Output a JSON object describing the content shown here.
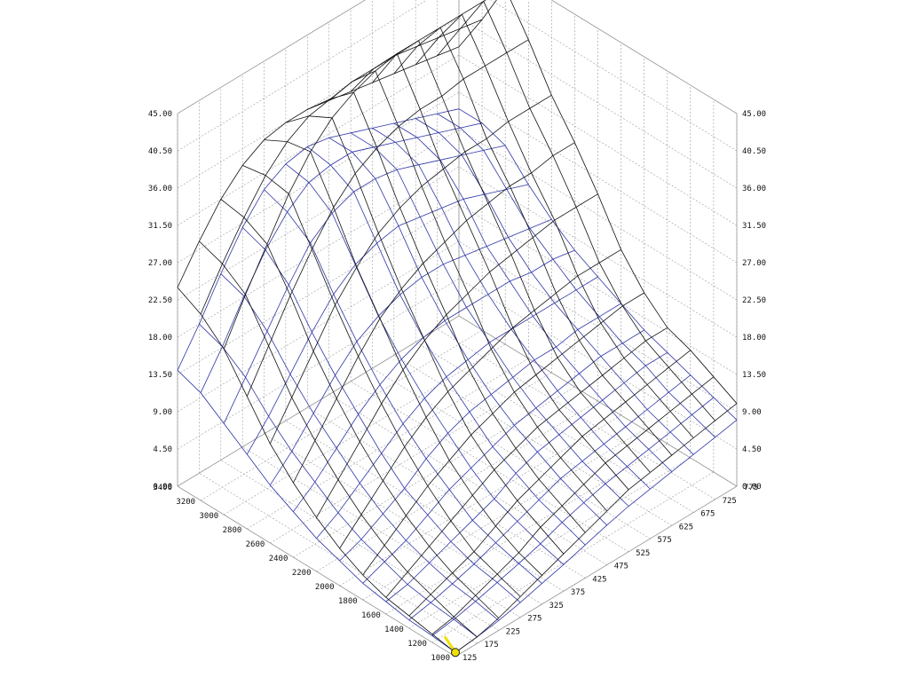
{
  "chart_data": {
    "type": "surface3d",
    "title": "",
    "xlabel": "",
    "ylabel": "",
    "zlabel": "",
    "rpm_ticks": [
      "1000",
      "1200",
      "1400",
      "1600",
      "1800",
      "2000",
      "2200",
      "2400",
      "2600",
      "2800",
      "3000",
      "3200",
      "3400"
    ],
    "load_ticks": [
      "125",
      "175",
      "225",
      "275",
      "325",
      "375",
      "425",
      "475",
      "525",
      "575",
      "625",
      "675",
      "725",
      "775"
    ],
    "z_ticks": [
      "0.00",
      "4.50",
      "9.00",
      "13.50",
      "18.00",
      "22.50",
      "27.00",
      "31.50",
      "36.00",
      "40.50",
      "45.00"
    ],
    "xlim": [
      1000,
      3400
    ],
    "ylim": [
      125,
      775
    ],
    "zlim": [
      0,
      45
    ],
    "grid": true,
    "series": [
      {
        "rows_axis": "rpm",
        "cols_axis": "load",
        "rpm": [
          1000,
          1200,
          1400,
          1600,
          1800,
          2000,
          2200,
          2400,
          2600,
          2800,
          3000,
          3200,
          3400
        ],
        "load": [
          125,
          175,
          225,
          275,
          325,
          375,
          425,
          475,
          525,
          575,
          625,
          675,
          725,
          775
        ],
        "values": [
          [
            0.5,
            0.8,
            1.5,
            2.5,
            3.5,
            4.5,
            5.5,
            6.5,
            7.5,
            8.0,
            8.5,
            9.0,
            9.5,
            10.0
          ],
          [
            1.0,
            1.5,
            2.5,
            3.5,
            4.5,
            6.0,
            7.0,
            8.0,
            9.0,
            9.5,
            10.0,
            10.5,
            11.0,
            11.5
          ],
          [
            1.5,
            2.5,
            3.5,
            4.5,
            6.0,
            7.5,
            8.5,
            9.5,
            10.5,
            11.0,
            11.5,
            12.0,
            12.5,
            13.0
          ],
          [
            2.0,
            3.5,
            5.0,
            6.5,
            8.0,
            9.5,
            10.5,
            11.5,
            12.0,
            12.5,
            13.0,
            13.5,
            14.0,
            14.0
          ],
          [
            3.0,
            5.0,
            7.0,
            9.0,
            10.5,
            12.0,
            13.0,
            14.0,
            14.5,
            15.0,
            15.5,
            16.0,
            16.5,
            16.5
          ],
          [
            4.5,
            7.0,
            9.5,
            12.0,
            14.0,
            15.5,
            16.5,
            17.5,
            18.5,
            19.0,
            19.5,
            20.0,
            20.0,
            20.0
          ],
          [
            6.5,
            9.5,
            12.5,
            15.5,
            18.0,
            20.0,
            21.5,
            22.5,
            23.5,
            24.0,
            24.5,
            25.0,
            25.0,
            25.0
          ],
          [
            9.0,
            12.5,
            16.0,
            19.5,
            22.5,
            24.5,
            26.0,
            27.0,
            28.0,
            28.5,
            29.0,
            29.0,
            29.5,
            29.5
          ],
          [
            12.0,
            16.0,
            20.0,
            24.0,
            27.0,
            29.5,
            31.0,
            32.0,
            32.5,
            33.0,
            33.0,
            33.5,
            33.5,
            33.5
          ],
          [
            16.0,
            20.5,
            25.0,
            29.0,
            32.5,
            35.0,
            36.5,
            37.5,
            38.0,
            38.0,
            38.5,
            38.5,
            38.5,
            38.5
          ],
          [
            20.0,
            25.0,
            29.5,
            34.0,
            37.5,
            40.0,
            41.5,
            42.5,
            43.0,
            43.0,
            43.0,
            43.0,
            43.0,
            43.0
          ],
          [
            22.5,
            27.0,
            31.0,
            34.5,
            37.0,
            38.5,
            39.0,
            39.5,
            39.5,
            39.5,
            39.0,
            38.5,
            38.0,
            37.5
          ],
          [
            24.0,
            28.0,
            31.5,
            34.0,
            35.5,
            36.0,
            36.0,
            35.5,
            35.0,
            34.5,
            34.0,
            33.5,
            33.0,
            32.5
          ]
        ]
      },
      {
        "rows_axis": "rpm",
        "cols_axis": "load",
        "rpm": [
          1000,
          1200,
          1400,
          1600,
          1800,
          2000,
          2200,
          2400,
          2600,
          2800,
          3000,
          3200,
          3400
        ],
        "load": [
          125,
          175,
          225,
          275,
          325,
          375,
          425,
          475,
          525,
          575,
          625,
          675,
          725,
          775
        ],
        "values": [
          [
            0.5,
            0.8,
            1.2,
            1.8,
            2.5,
            3.2,
            4.0,
            4.8,
            5.5,
            6.0,
            6.5,
            7.0,
            7.5,
            8.0
          ],
          [
            0.8,
            1.2,
            1.8,
            2.5,
            3.2,
            4.0,
            5.0,
            5.8,
            6.5,
            7.0,
            7.5,
            8.0,
            8.5,
            9.0
          ],
          [
            1.0,
            1.5,
            2.2,
            3.0,
            4.0,
            5.0,
            6.0,
            7.0,
            7.5,
            8.0,
            8.5,
            9.0,
            9.5,
            10.0
          ],
          [
            1.5,
            2.0,
            3.0,
            4.0,
            5.0,
            6.0,
            7.5,
            8.5,
            9.0,
            9.5,
            10.0,
            10.5,
            11.0,
            11.0
          ],
          [
            2.0,
            3.0,
            4.0,
            5.5,
            7.0,
            8.0,
            9.0,
            10.0,
            10.5,
            11.0,
            11.5,
            12.0,
            12.0,
            12.0
          ],
          [
            3.0,
            4.0,
            5.5,
            7.0,
            9.0,
            10.5,
            11.5,
            12.0,
            12.5,
            13.0,
            13.0,
            13.5,
            13.5,
            13.5
          ],
          [
            4.0,
            5.5,
            7.5,
            9.5,
            11.5,
            13.0,
            14.0,
            14.5,
            15.0,
            15.0,
            15.0,
            15.0,
            15.0,
            15.0
          ],
          [
            5.5,
            7.5,
            10.0,
            12.5,
            14.5,
            16.0,
            17.0,
            17.5,
            17.5,
            17.5,
            17.5,
            17.0,
            17.0,
            16.5
          ],
          [
            7.0,
            9.5,
            12.5,
            15.5,
            18.0,
            19.5,
            20.5,
            21.0,
            21.0,
            20.5,
            20.0,
            19.5,
            19.0,
            18.5
          ],
          [
            9.0,
            12.0,
            15.5,
            19.0,
            22.0,
            24.0,
            25.0,
            25.5,
            25.0,
            24.5,
            24.0,
            23.0,
            22.0,
            21.0
          ],
          [
            11.0,
            15.0,
            19.0,
            23.0,
            26.5,
            28.5,
            29.5,
            29.5,
            29.0,
            28.0,
            27.0,
            26.0,
            25.0,
            24.0
          ],
          [
            13.0,
            17.0,
            21.5,
            25.5,
            28.5,
            30.5,
            31.0,
            31.0,
            30.0,
            29.0,
            28.0,
            27.0,
            26.0,
            25.0
          ],
          [
            14.0,
            18.0,
            22.5,
            26.5,
            29.5,
            31.0,
            31.5,
            31.0,
            30.0,
            29.0,
            28.0,
            27.0,
            26.0,
            25.0
          ]
        ]
      }
    ],
    "marker": {
      "rpm": 1000,
      "load": 125,
      "z": 0.5
    },
    "colors": {
      "surface_over": "#111111",
      "surface_under": "#2e36a6",
      "grid": "#9a9a9a",
      "marker": "#f0e000"
    }
  }
}
